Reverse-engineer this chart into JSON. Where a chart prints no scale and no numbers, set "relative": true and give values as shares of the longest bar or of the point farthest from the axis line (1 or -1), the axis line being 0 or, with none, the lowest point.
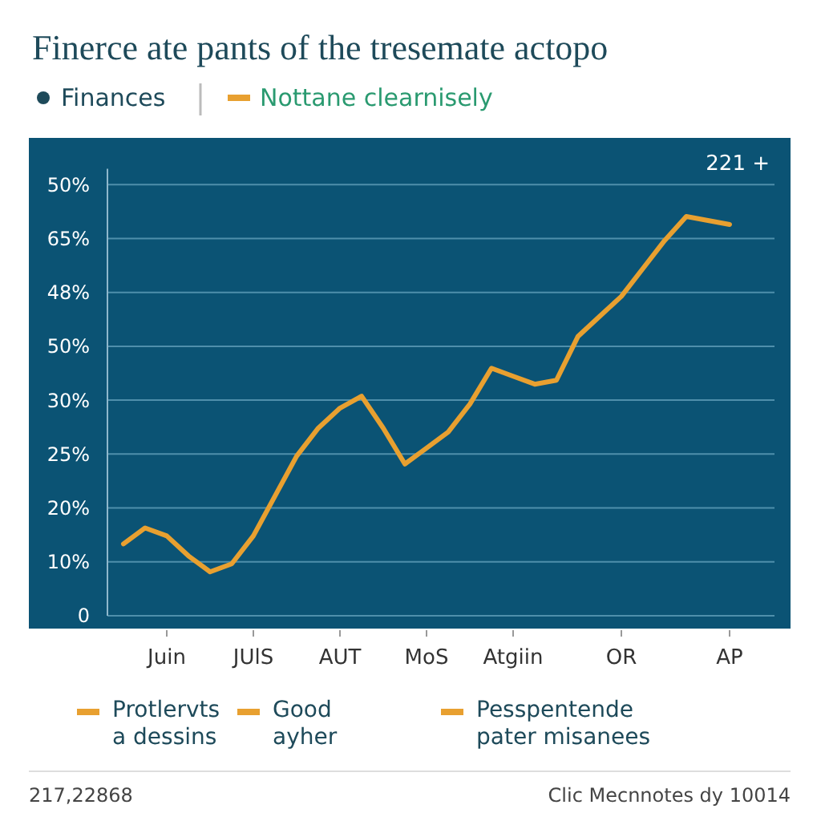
{
  "chart_data": {
    "type": "line",
    "title": "Finerce ate pants of the tresemate actopo",
    "categories": [
      null,
      null,
      "Juin",
      null,
      null,
      null,
      "JUlS",
      null,
      null,
      null,
      "AUT",
      null,
      null,
      null,
      "MoS",
      null,
      null,
      null,
      "Atgiin",
      null,
      null,
      null,
      null,
      "OR",
      null,
      null,
      null,
      null,
      "AP"
    ],
    "relative": true,
    "series": [
      {
        "name": "Nottane clearnisely",
        "color": "#e8a030",
        "values": [
          0.18,
          0.22,
          0.2,
          0.15,
          0.11,
          0.13,
          0.2,
          0.3,
          0.4,
          0.47,
          0.52,
          0.55,
          0.47,
          0.38,
          0.42,
          0.46,
          0.53,
          0.62,
          0.6,
          0.58,
          0.59,
          0.7,
          0.75,
          0.8,
          0.87,
          0.94,
          1,
          0.99,
          0.98
        ]
      }
    ],
    "legend": "top left",
    "marker": "none",
    "line_style": "solid",
    "ref_lines": [
      {
        "axis": "y",
        "value": 0,
        "color": "#4f8fab"
      },
      {
        "axis": "y",
        "value": 0.135,
        "color": "#4f8fab"
      },
      {
        "axis": "y",
        "value": 0.27,
        "color": "#4f8fab"
      },
      {
        "axis": "y",
        "value": 0.405,
        "color": "#4f8fab"
      },
      {
        "axis": "y",
        "value": 0.54,
        "color": "#4f8fab"
      },
      {
        "axis": "y",
        "value": 0.675,
        "color": "#4f8fab"
      },
      {
        "axis": "y",
        "value": 0.81,
        "color": "#4f8fab"
      },
      {
        "axis": "y",
        "value": 0.945,
        "color": "#4f8fab"
      },
      {
        "axis": "y",
        "value": 1.08,
        "color": "#4f8fab"
      }
    ],
    "annotations": [
      "Finances",
      "221 +",
      "Protlervts\na dessins",
      "Good\nayher",
      "Pesspentende\npater misanees",
      "217,22868",
      "Clic Mecnnotes dy 10014",
      "0",
      "10%",
      "20%",
      "25%",
      "30%",
      "50%",
      "48%",
      "65%",
      "50%"
    ]
  }
}
